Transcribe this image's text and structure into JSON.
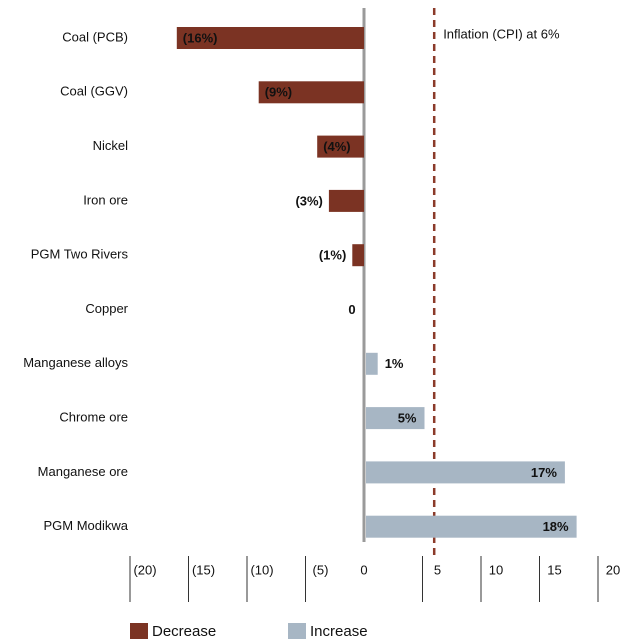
{
  "chart_data": {
    "type": "bar",
    "orientation": "horizontal",
    "categories": [
      "Coal (PCB)",
      "Coal (GGV)",
      "Nickel",
      "Iron ore",
      "PGM Two Rivers",
      "Copper",
      "Manganese alloys",
      "Chrome ore",
      "Manganese ore",
      "PGM Modikwa"
    ],
    "values": [
      -16,
      -9,
      -4,
      -3,
      -1,
      0,
      1,
      5,
      17,
      18
    ],
    "value_labels": [
      "(16%)",
      "(9%)",
      "(4%)",
      "(3%)",
      "(1%)",
      "0",
      "1%",
      "5%",
      "17%",
      "18%"
    ],
    "legend": [
      {
        "name": "Decrease",
        "color": "#7b3323"
      },
      {
        "name": "Increase",
        "color": "#a7b6c4"
      }
    ],
    "xlim": [
      -20,
      20
    ],
    "xticks": [
      {
        "value": -20,
        "label": "(20)"
      },
      {
        "value": -15,
        "label": "(15)"
      },
      {
        "value": -10,
        "label": "(10)"
      },
      {
        "value": -5,
        "label": "(5)"
      },
      0,
      5,
      10,
      15,
      20
    ],
    "reference_line": {
      "value": 6,
      "label": "Inflation (CPI) at 6%",
      "color": "#8b3a2a"
    }
  }
}
